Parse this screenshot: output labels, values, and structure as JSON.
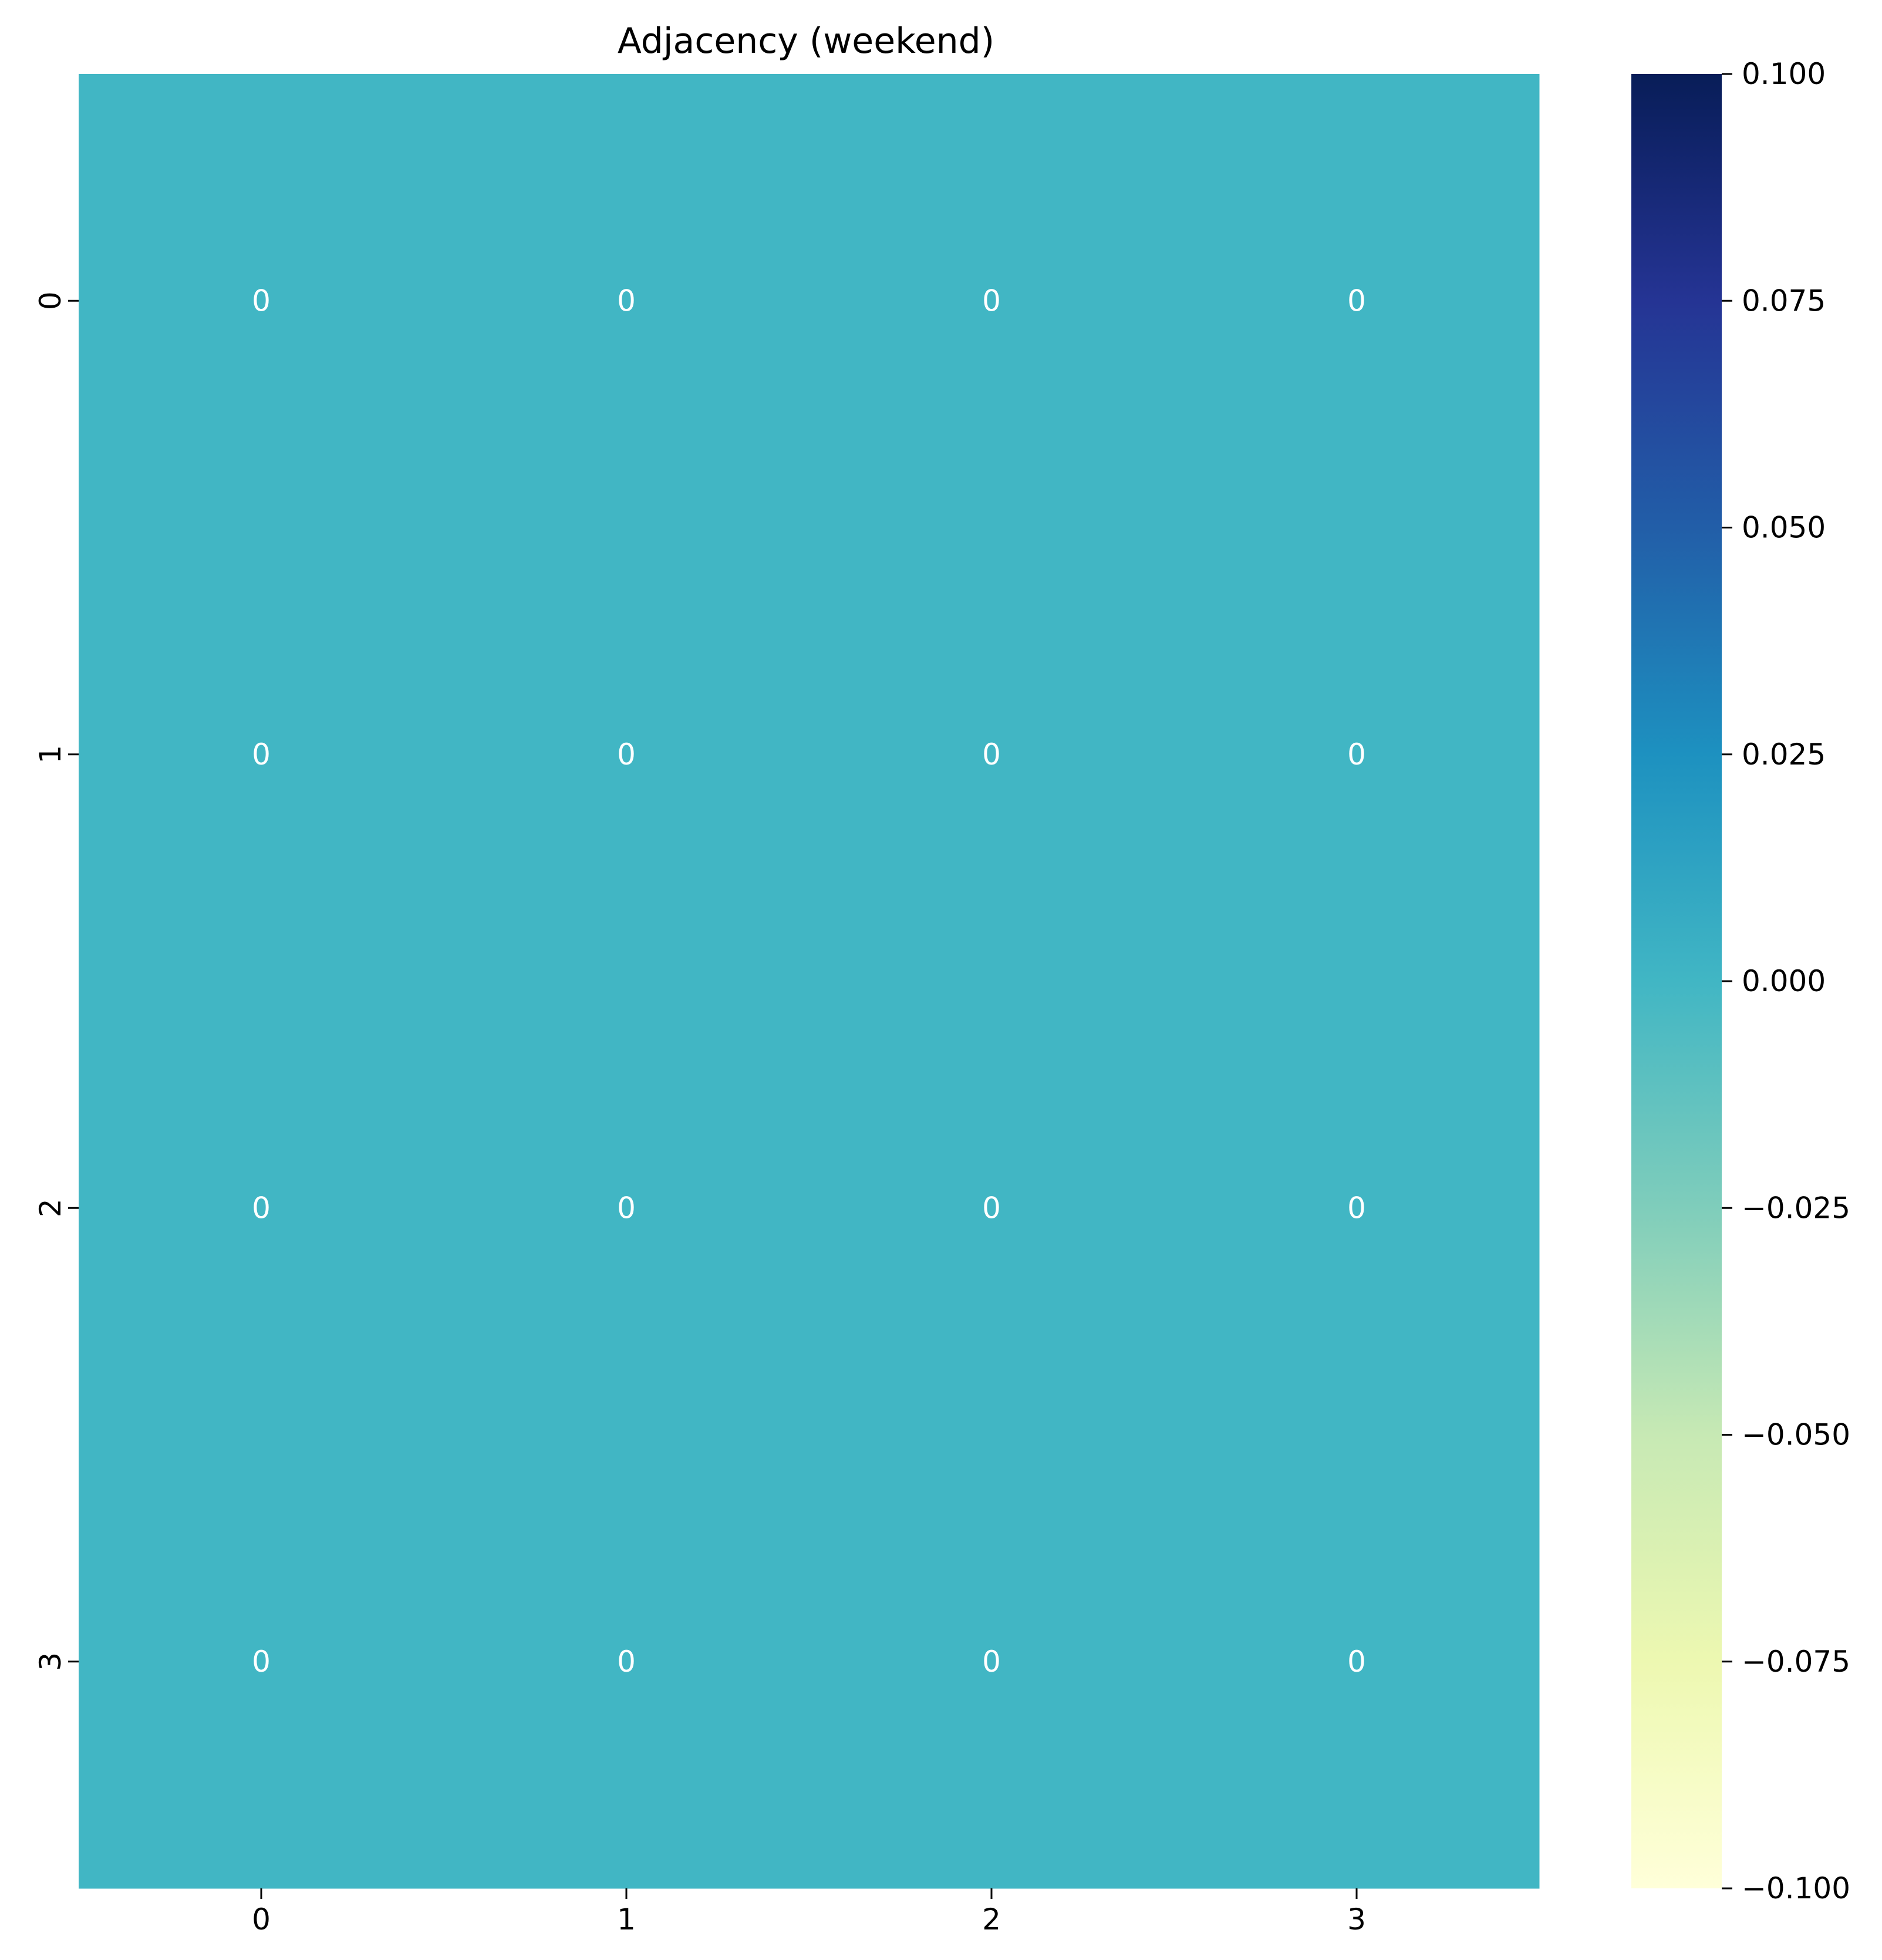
{
  "chart_data": {
    "type": "heatmap",
    "title": "Adjacency (weekend)",
    "xlabel": "",
    "ylabel": "",
    "x_categories": [
      "0",
      "1",
      "2",
      "3"
    ],
    "y_categories": [
      "0",
      "1",
      "2",
      "3"
    ],
    "values": [
      [
        0,
        0,
        0,
        0
      ],
      [
        0,
        0,
        0,
        0
      ],
      [
        0,
        0,
        0,
        0
      ],
      [
        0,
        0,
        0,
        0
      ]
    ],
    "annotations": [
      [
        "0",
        "0",
        "0",
        "0"
      ],
      [
        "0",
        "0",
        "0",
        "0"
      ],
      [
        "0",
        "0",
        "0",
        "0"
      ],
      [
        "0",
        "0",
        "0",
        "0"
      ]
    ],
    "colorbar": {
      "range": [
        -0.1,
        0.1
      ],
      "ticks": [
        0.1,
        0.075,
        0.05,
        0.025,
        0.0,
        -0.025,
        -0.05,
        -0.075,
        -0.1
      ],
      "tick_labels": [
        "0.100",
        "0.075",
        "0.050",
        "0.025",
        "0.000",
        "−0.025",
        "−0.050",
        "−0.075",
        "−0.100"
      ],
      "colormap": "YlGnBu",
      "stops": [
        {
          "value": -0.1,
          "color": "#ffffd9"
        },
        {
          "value": -0.075,
          "color": "#edf8b1"
        },
        {
          "value": -0.05,
          "color": "#c7e9b4"
        },
        {
          "value": -0.025,
          "color": "#7fcdbb"
        },
        {
          "value": 0.0,
          "color": "#41b6c4"
        },
        {
          "value": 0.025,
          "color": "#1d91c0"
        },
        {
          "value": 0.05,
          "color": "#225ea8"
        },
        {
          "value": 0.075,
          "color": "#253494"
        },
        {
          "value": 0.1,
          "color": "#081d58"
        }
      ]
    },
    "cell_color": "#41b6c4",
    "annotation_color": "#ffffff",
    "grid": false
  }
}
